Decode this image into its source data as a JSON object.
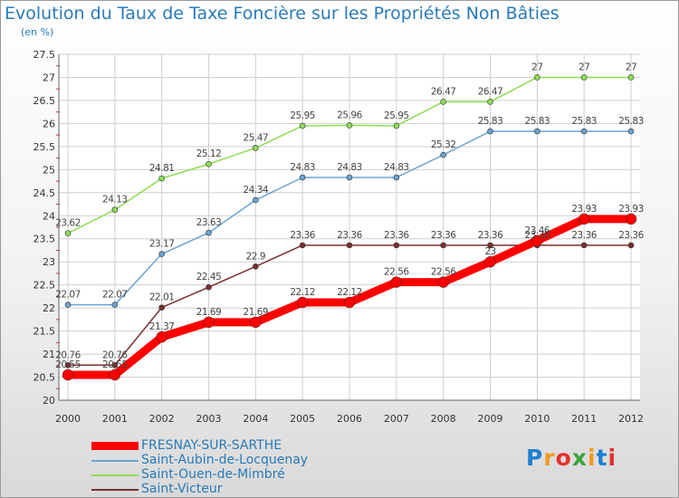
{
  "title": "Evolution du Taux de Taxe Foncière sur les Propriétés Non Bâties",
  "unit_label": "(en %)",
  "brand": {
    "text": "Proxiti",
    "letter_colors": [
      "#1f7fd0",
      "#f19a1f",
      "#e1322c",
      "#3aa43a",
      "#f19a1f",
      "#1f7fd0",
      "#e1322c"
    ]
  },
  "chart_data": {
    "type": "line",
    "title": "Evolution du Taux de Taxe Foncière sur les Propriétés Non Bâties",
    "ylabel": "(en %)",
    "xlabel": "",
    "x": [
      "2000",
      "2001",
      "2002",
      "2003",
      "2004",
      "2005",
      "2006",
      "2007",
      "2008",
      "2009",
      "2010",
      "2011",
      "2012"
    ],
    "ylim": [
      20,
      27.5
    ],
    "yticks": [
      "20",
      "20.5",
      "21",
      "21.5",
      "22",
      "22.5",
      "23",
      "23.5",
      "24",
      "24.5",
      "25",
      "25.5",
      "26",
      "26.5",
      "27",
      "27.5"
    ],
    "grid": true,
    "legend_position": "bottom-left",
    "series": [
      {
        "name": "FRESNAY-SUR-SARTHE",
        "color": "#ff0000",
        "emphasis": true,
        "values": [
          20.55,
          20.55,
          21.37,
          21.69,
          21.69,
          22.12,
          22.12,
          22.56,
          22.56,
          23,
          23.46,
          23.93,
          23.93
        ],
        "labels": [
          "20.55",
          "20.55",
          "21.37",
          "21.69",
          "21.69",
          "22.12",
          "22.12",
          "22.56",
          "22.56",
          "23",
          "23.46",
          "23.93",
          "23.93"
        ]
      },
      {
        "name": "Saint-Aubin-de-Locquenay",
        "color": "#6aa3d5",
        "values": [
          22.07,
          22.07,
          23.17,
          23.63,
          24.34,
          24.83,
          24.83,
          24.83,
          25.32,
          25.83,
          25.83,
          25.83,
          25.83
        ],
        "labels": [
          "22.07",
          "22.07",
          "23.17",
          "23.63",
          "24.34",
          "24.83",
          "24.83",
          "24.83",
          "25.32",
          "25.83",
          "25.83",
          "25.83",
          "25.83"
        ]
      },
      {
        "name": "Saint-Ouen-de-Mimbré",
        "color": "#8fdc55",
        "values": [
          23.62,
          24.13,
          24.81,
          25.12,
          25.47,
          25.95,
          25.96,
          25.95,
          26.47,
          26.47,
          27,
          27,
          27
        ],
        "labels": [
          "23.62",
          "24.13",
          "24.81",
          "25.12",
          "25.47",
          "25.95",
          "25.96",
          "25.95",
          "26.47",
          "26.47",
          "27",
          "27",
          "27"
        ]
      },
      {
        "name": "Saint-Victeur",
        "color": "#7a3030",
        "values": [
          20.76,
          20.76,
          22.01,
          22.45,
          22.9,
          23.36,
          23.36,
          23.36,
          23.36,
          23.36,
          23.36,
          23.36,
          23.36
        ],
        "labels": [
          "20.76",
          "20.76",
          "22.01",
          "22.45",
          "22.9",
          "23.36",
          "23.36",
          "23.36",
          "23.36",
          "23.36",
          "23.36",
          "23.36",
          "23.36"
        ]
      }
    ]
  }
}
